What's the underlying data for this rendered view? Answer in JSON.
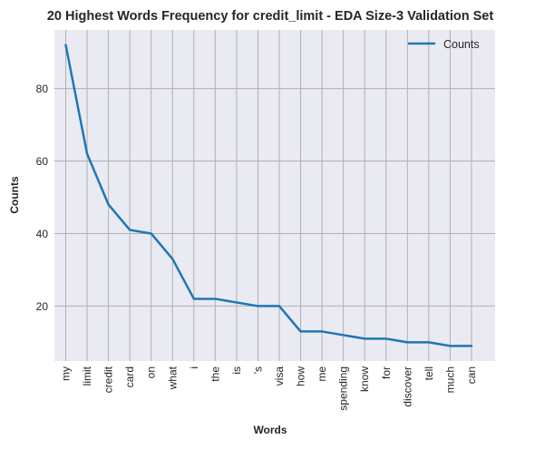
{
  "chart_data": {
    "type": "line",
    "title": "20 Highest Words Frequency for credit_limit - EDA Size-3 Validation Set",
    "xlabel": "Words",
    "ylabel": "Counts",
    "categories": [
      "my",
      "limit",
      "credit",
      "card",
      "on",
      "what",
      "i",
      "the",
      "is",
      "'s",
      "visa",
      "how",
      "me",
      "spending",
      "know",
      "for",
      "discover",
      "tell",
      "much",
      "can"
    ],
    "series": [
      {
        "name": "Counts",
        "values": [
          92,
          62,
          48,
          41,
          40,
          33,
          22,
          22,
          21,
          20,
          20,
          13,
          13,
          12,
          11,
          11,
          10,
          10,
          9,
          9
        ]
      }
    ],
    "yticks": [
      20,
      40,
      60,
      80
    ],
    "ylim": [
      4.85,
      96.15
    ],
    "grid": true,
    "legend": "top-right",
    "colors": {
      "line": "#1f77b4",
      "plot_bg": "#eaeaf2",
      "grid": "#b0b0b0",
      "text": "#262626"
    }
  }
}
